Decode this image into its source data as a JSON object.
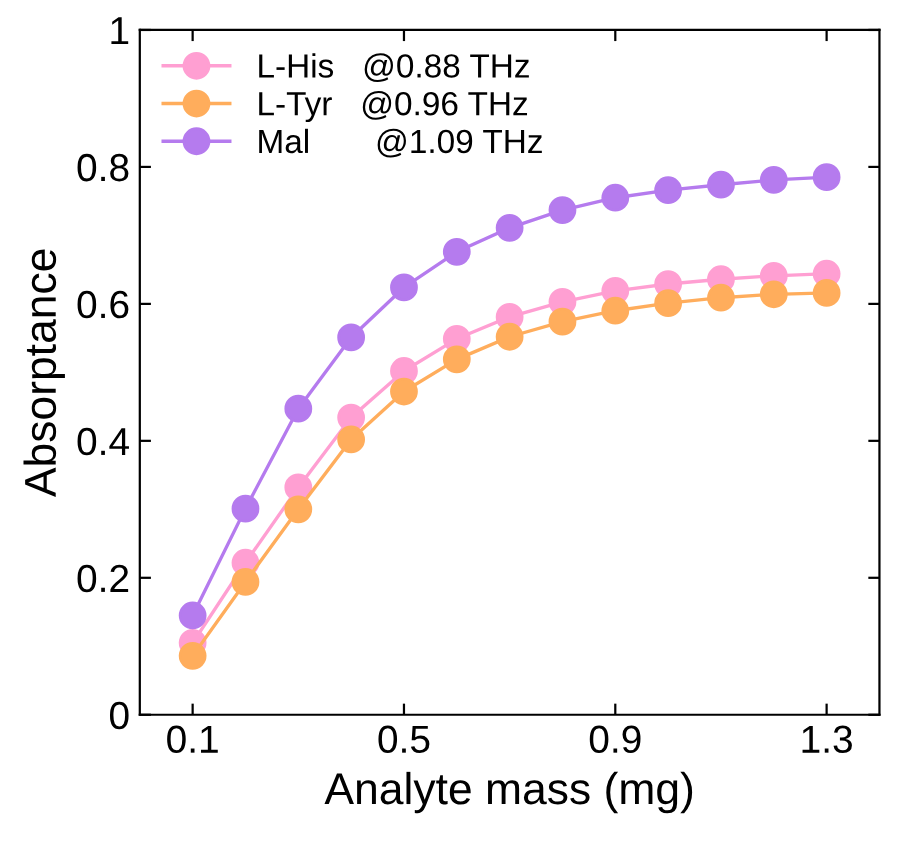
{
  "chart_data": {
    "type": "line",
    "xlabel": "Analyte mass (mg)",
    "ylabel": "Absorptance",
    "x": [
      0.1,
      0.2,
      0.3,
      0.4,
      0.5,
      0.6,
      0.7,
      0.8,
      0.9,
      1.0,
      1.1,
      1.2,
      1.3
    ],
    "series": [
      {
        "name": "L-His   @0.88 THz",
        "color": "#ff9fd2",
        "values": [
          0.105,
          0.222,
          0.332,
          0.434,
          0.502,
          0.549,
          0.581,
          0.603,
          0.619,
          0.629,
          0.636,
          0.641,
          0.644
        ]
      },
      {
        "name": "L-Tyr   @0.96 THz",
        "color": "#ffad5c",
        "values": [
          0.086,
          0.194,
          0.3,
          0.402,
          0.472,
          0.519,
          0.552,
          0.574,
          0.59,
          0.601,
          0.609,
          0.614,
          0.616
        ]
      },
      {
        "name": "Mal       @1.09 THz",
        "color": "#b57bee",
        "values": [
          0.145,
          0.301,
          0.447,
          0.551,
          0.624,
          0.676,
          0.711,
          0.737,
          0.755,
          0.766,
          0.774,
          0.781,
          0.785
        ]
      }
    ],
    "xlim": [
      0.0,
      1.4
    ],
    "xticks": [
      0.1,
      0.5,
      0.9,
      1.3
    ],
    "ylim": [
      0,
      1
    ],
    "yticks": [
      0,
      0.2,
      0.4,
      0.6,
      0.8,
      1
    ],
    "marker": "circle",
    "line_style": "solid",
    "legend": "top left",
    "grid": false
  }
}
